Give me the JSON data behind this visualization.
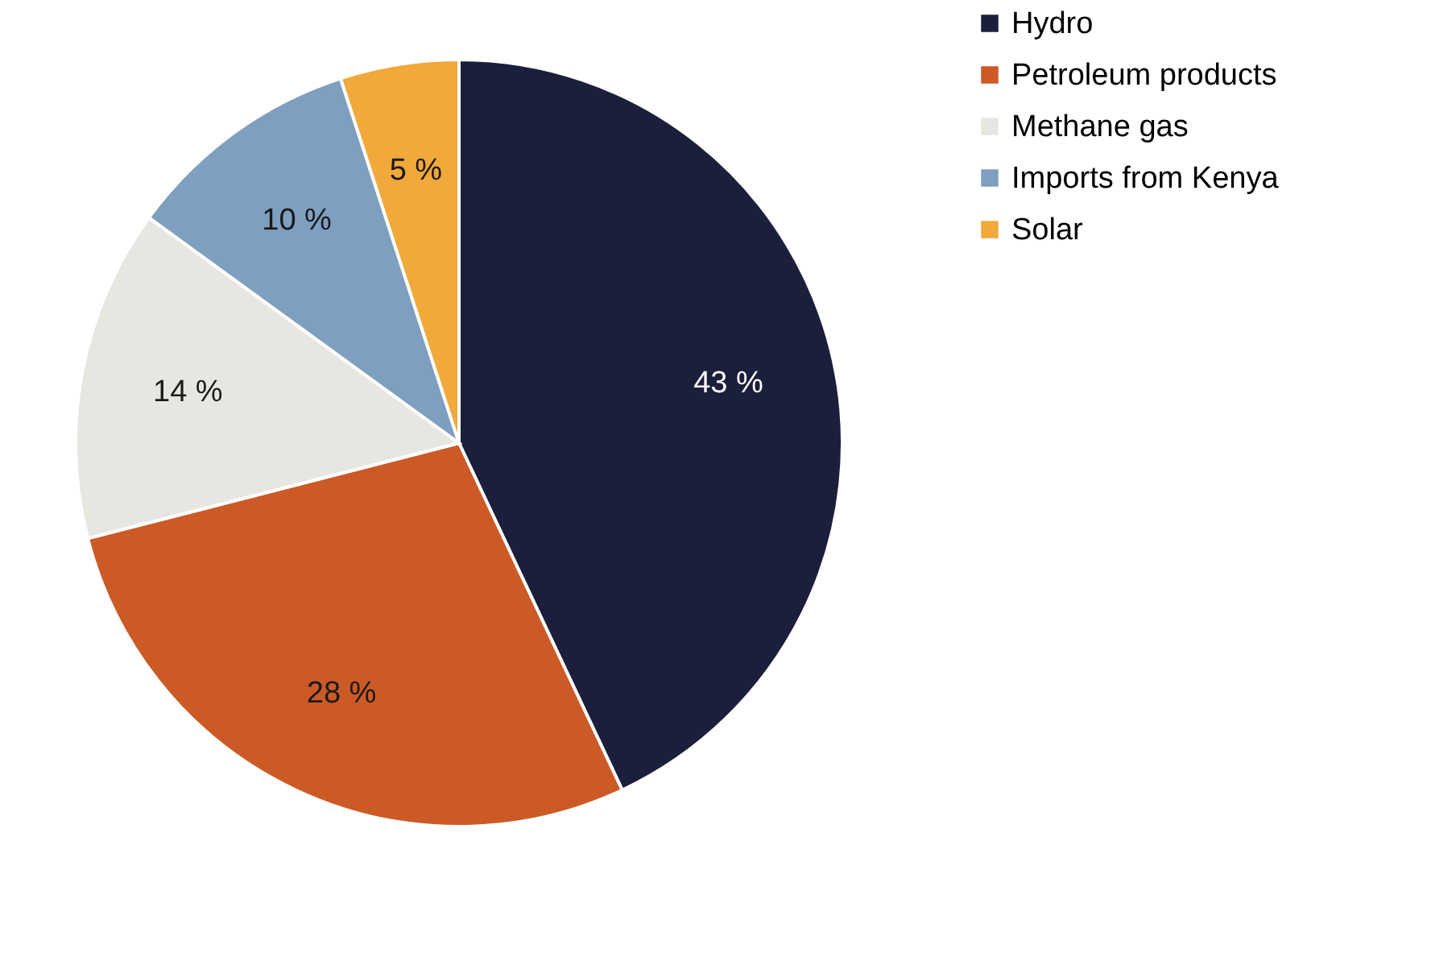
{
  "chart_data": {
    "type": "pie",
    "categories": [
      "Hydro",
      "Petroleum products",
      "Methane gas",
      "Imports from Kenya",
      "Solar"
    ],
    "values": [
      43,
      28,
      14,
      10,
      5
    ],
    "colors": [
      "#1b1f3b",
      "#cc5a27",
      "#e8e6e1",
      "#7f9fc0",
      "#f0a93a"
    ],
    "value_labels": [
      "43 %",
      "28 %",
      "14 %",
      "10 %",
      "5 %"
    ],
    "legend": "right"
  }
}
